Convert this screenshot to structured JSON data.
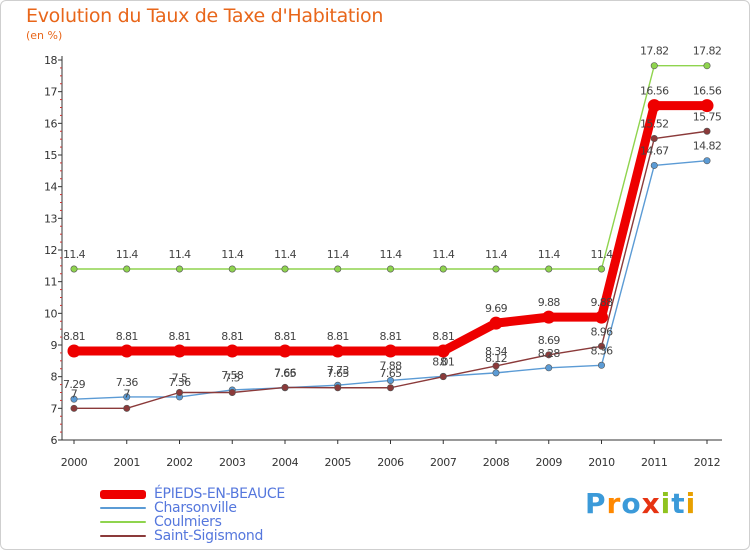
{
  "chart_data": {
    "type": "line",
    "title": "Evolution du Taux de Taxe d'Habitation",
    "subtitle": "(en %)",
    "x": [
      "2000",
      "2001",
      "2002",
      "2003",
      "2004",
      "2005",
      "2006",
      "2007",
      "2008",
      "2009",
      "2010",
      "2011",
      "2012"
    ],
    "ylim": [
      6,
      18
    ],
    "yticks": [
      6,
      7,
      8,
      9,
      10,
      11,
      12,
      13,
      14,
      15,
      16,
      17,
      18
    ],
    "grid": false,
    "legend_position": "bottom-left",
    "series": [
      {
        "name": "ÉPIEDS-EN-BEAUCE",
        "color": "#ee0000",
        "values": [
          8.81,
          8.81,
          8.81,
          8.81,
          8.81,
          8.81,
          8.81,
          8.81,
          9.69,
          9.88,
          9.88,
          16.56,
          16.56
        ],
        "labels": [
          "8.81",
          "8.81",
          "8.81",
          "8.81",
          "8.81",
          "8.81",
          "8.81",
          "8.81",
          "9.69",
          "9.88",
          "9.88",
          "16.56",
          "16.56"
        ]
      },
      {
        "name": "Charsonville",
        "color": "#5b9bd5",
        "values": [
          7.29,
          7.36,
          7.36,
          7.58,
          7.65,
          7.73,
          7.88,
          8.01,
          8.12,
          8.28,
          8.36,
          14.67,
          14.82
        ],
        "labels": [
          "7.29",
          "7.36",
          "7.36",
          "7.58",
          "7.65",
          "7.73",
          "7.88",
          "8.01",
          "8.12",
          "8.28",
          "8.36",
          "14.67",
          "14.82"
        ]
      },
      {
        "name": "Coulmiers",
        "color": "#8fd44e",
        "values": [
          11.4,
          11.4,
          11.4,
          11.4,
          11.4,
          11.4,
          11.4,
          11.4,
          11.4,
          11.4,
          11.4,
          17.82,
          17.82
        ],
        "labels": [
          "11.4",
          "11.4",
          "11.4",
          "11.4",
          "11.4",
          "11.4",
          "11.4",
          "11.4",
          "11.4",
          "11.4",
          "11.4",
          "17.82",
          "17.82"
        ]
      },
      {
        "name": "Saint-Sigismond",
        "color": "#8b3a3a",
        "values": [
          7,
          7,
          7.5,
          7.5,
          7.66,
          7.65,
          7.65,
          8,
          8.34,
          8.69,
          8.96,
          15.52,
          15.75
        ],
        "labels": [
          "7",
          "7",
          "7.5",
          "7.5",
          "7.66",
          "7.65",
          "7.65",
          "8",
          "8.34",
          "8.69",
          "8.96",
          "15.52",
          "15.75"
        ]
      }
    ]
  },
  "logo": {
    "text": "Proxiti",
    "letters": [
      "P",
      "r",
      "o",
      "x",
      "i",
      "t",
      "i"
    ],
    "colors": [
      "#3b9ad9",
      "#ff8800",
      "#3b9ad9",
      "#e63312",
      "#8fc31f",
      "#3b9ad9",
      "#e8a000"
    ]
  }
}
